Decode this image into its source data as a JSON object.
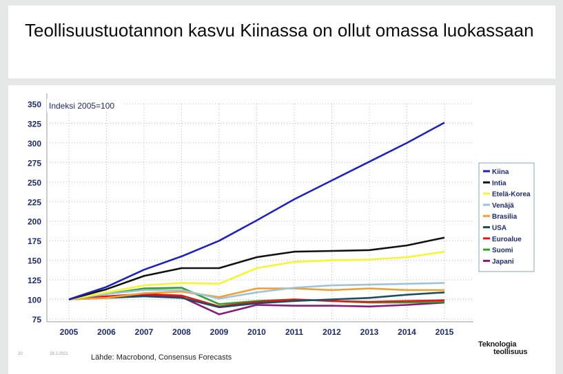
{
  "slide": {
    "title": "Teollisuustuotannon kasvu Kiinassa on ollut omassa luokassaan",
    "page_number": "20",
    "date": "28.2.2021",
    "source": "Lähde: Macrobond, Consensus Forecasts",
    "logo_line1": "Teknologia",
    "logo_line2": "teollisuus"
  },
  "chart_data": {
    "type": "line",
    "title": "Indeksi 2005=100",
    "xlabel": "",
    "ylabel": "",
    "ylim": [
      75,
      350
    ],
    "yticks": [
      75,
      100,
      125,
      150,
      175,
      200,
      225,
      250,
      275,
      300,
      325,
      350
    ],
    "x": [
      2005,
      2006,
      2007,
      2008,
      2009,
      2010,
      2011,
      2012,
      2013,
      2014,
      2015
    ],
    "grid": true,
    "legend_position": "right",
    "series": [
      {
        "name": "Kiina",
        "color": "#1e22b8",
        "values": [
          100,
          116,
          138,
          155,
          175,
          201,
          228,
          252,
          276,
          300,
          326
        ]
      },
      {
        "name": "Intia",
        "color": "#111111",
        "values": [
          100,
          113,
          130,
          140,
          140,
          154,
          161,
          162,
          163,
          169,
          179
        ]
      },
      {
        "name": "Etelä-Korea",
        "color": "#f5f530",
        "values": [
          100,
          109,
          118,
          121,
          120,
          140,
          148,
          150,
          151,
          154,
          161
        ]
      },
      {
        "name": "Venäjä",
        "color": "#9ec2d9",
        "values": [
          100,
          107,
          112,
          112,
          101,
          109,
          115,
          118,
          119,
          120,
          121
        ]
      },
      {
        "name": "Brasilia",
        "color": "#f0a030",
        "values": [
          100,
          102,
          108,
          110,
          103,
          114,
          114,
          112,
          114,
          112,
          112
        ]
      },
      {
        "name": "USA",
        "color": "#1d4e5e",
        "values": [
          100,
          102,
          104,
          102,
          90,
          95,
          98,
          100,
          102,
          106,
          109
        ]
      },
      {
        "name": "Euroalue",
        "color": "#e01818",
        "values": [
          100,
          104,
          107,
          105,
          91,
          97,
          100,
          98,
          97,
          98,
          99
        ]
      },
      {
        "name": "Suomi",
        "color": "#30a030",
        "values": [
          100,
          107,
          114,
          115,
          94,
          98,
          100,
          98,
          96,
          96,
          97
        ]
      },
      {
        "name": "Japani",
        "color": "#8a1a7a",
        "values": [
          100,
          104,
          106,
          103,
          81,
          93,
          92,
          92,
          91,
          93,
          96
        ]
      }
    ]
  }
}
